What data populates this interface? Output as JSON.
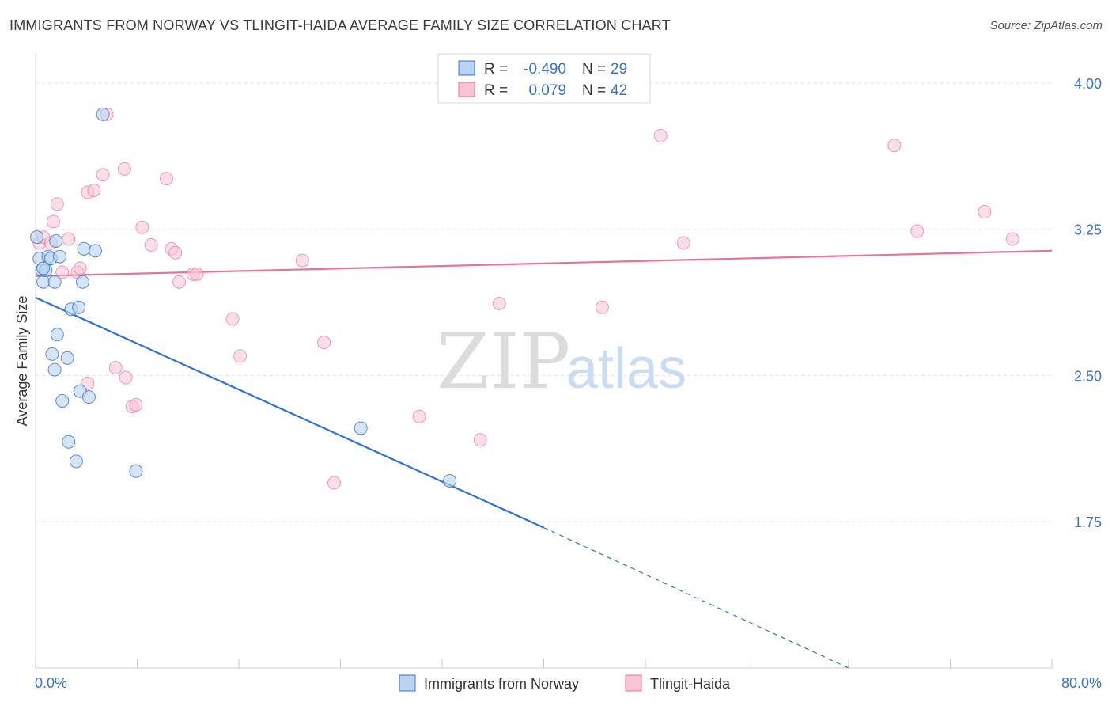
{
  "title": "IMMIGRANTS FROM NORWAY VS TLINGIT-HAIDA AVERAGE FAMILY SIZE CORRELATION CHART",
  "source": "Source: ZipAtlas.com",
  "watermark": {
    "zip": "ZIP",
    "atlas": "atlas"
  },
  "legend": {
    "rows": [
      {
        "r_label": "R =",
        "r_value": "-0.490",
        "n_label": "N =",
        "n_value": "29"
      },
      {
        "r_label": "R =",
        "r_value": "0.079",
        "n_label": "N =",
        "n_value": "42"
      }
    ]
  },
  "colors": {
    "blue": "#3b73c4",
    "blue_line": "#2f72d0",
    "blue_fill": "#b9d3f2",
    "pink_line": "#e8729a",
    "pink_fill": "#f8c4d3",
    "grid": "#e3e3e3"
  },
  "chart_data": {
    "type": "scatter",
    "title": "IMMIGRANTS FROM NORWAY VS TLINGIT-HAIDA AVERAGE FAMILY SIZE CORRELATION CHART",
    "xlabel": "",
    "ylabel": "Average Family Size",
    "xlim": [
      0,
      80
    ],
    "ylim": [
      1.0,
      4.15
    ],
    "x_tick_labels": [
      "0.0%",
      "80.0%"
    ],
    "y_ticks": [
      1.75,
      2.5,
      3.25,
      4.0
    ],
    "y_tick_labels": [
      "1.75",
      "2.50",
      "3.25",
      "4.00"
    ],
    "series": [
      {
        "name": "Immigrants from Norway",
        "color": "#3b73c4",
        "points": [
          [
            0.1,
            3.21
          ],
          [
            0.3,
            3.1
          ],
          [
            0.5,
            3.04
          ],
          [
            0.6,
            2.98
          ],
          [
            0.8,
            3.04
          ],
          [
            1.0,
            3.11
          ],
          [
            1.2,
            3.1
          ],
          [
            1.3,
            2.61
          ],
          [
            1.5,
            2.53
          ],
          [
            1.5,
            2.98
          ],
          [
            1.6,
            3.19
          ],
          [
            1.7,
            2.71
          ],
          [
            1.9,
            3.11
          ],
          [
            2.1,
            2.37
          ],
          [
            2.5,
            2.59
          ],
          [
            2.6,
            2.16
          ],
          [
            2.8,
            2.84
          ],
          [
            3.2,
            2.06
          ],
          [
            3.4,
            2.85
          ],
          [
            3.5,
            2.42
          ],
          [
            3.7,
            2.98
          ],
          [
            3.8,
            3.15
          ],
          [
            4.2,
            2.39
          ],
          [
            4.7,
            3.14
          ],
          [
            5.3,
            3.84
          ],
          [
            7.9,
            2.01
          ],
          [
            25.6,
            2.23
          ],
          [
            32.6,
            1.96
          ],
          [
            0.6,
            3.05
          ]
        ],
        "trend": {
          "x0": 0,
          "y0": 2.9,
          "x1": 40,
          "y1": 1.72,
          "dash_to_x": 64,
          "dash_to_y": 1.0
        }
      },
      {
        "name": "Tlingit-Haida",
        "color": "#e8729a",
        "points": [
          [
            0.3,
            3.18
          ],
          [
            0.6,
            3.21
          ],
          [
            1.2,
            3.18
          ],
          [
            1.4,
            3.29
          ],
          [
            1.7,
            3.38
          ],
          [
            2.1,
            3.03
          ],
          [
            2.6,
            3.2
          ],
          [
            3.3,
            3.03
          ],
          [
            3.5,
            3.05
          ],
          [
            4.1,
            2.46
          ],
          [
            4.1,
            3.44
          ],
          [
            4.6,
            3.45
          ],
          [
            5.3,
            3.53
          ],
          [
            5.6,
            3.84
          ],
          [
            6.3,
            2.54
          ],
          [
            7.0,
            3.56
          ],
          [
            7.1,
            2.49
          ],
          [
            7.6,
            2.34
          ],
          [
            7.9,
            2.35
          ],
          [
            8.4,
            3.26
          ],
          [
            9.1,
            3.17
          ],
          [
            10.3,
            3.51
          ],
          [
            10.7,
            3.15
          ],
          [
            11.0,
            3.13
          ],
          [
            11.3,
            2.98
          ],
          [
            12.4,
            3.02
          ],
          [
            12.7,
            3.02
          ],
          [
            15.5,
            2.79
          ],
          [
            16.1,
            2.6
          ],
          [
            21.0,
            3.09
          ],
          [
            22.7,
            2.67
          ],
          [
            23.5,
            1.95
          ],
          [
            30.2,
            2.29
          ],
          [
            35.0,
            2.17
          ],
          [
            36.5,
            2.87
          ],
          [
            44.6,
            2.85
          ],
          [
            49.2,
            3.73
          ],
          [
            51.0,
            3.18
          ],
          [
            67.6,
            3.68
          ],
          [
            69.4,
            3.24
          ],
          [
            74.7,
            3.34
          ],
          [
            76.9,
            3.2
          ]
        ],
        "trend": {
          "x0": 0,
          "y0": 3.01,
          "x1": 80,
          "y1": 3.14
        }
      }
    ],
    "legend_position": "top-center"
  }
}
